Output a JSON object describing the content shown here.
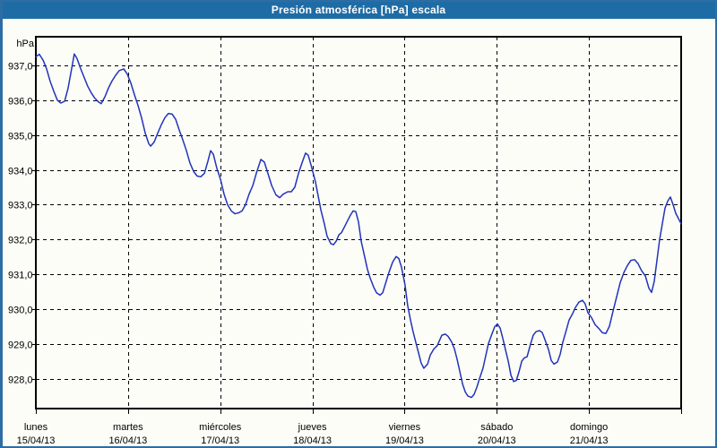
{
  "window": {
    "title": "Presión atmosférica [hPa] escala"
  },
  "colors": {
    "titlebar_bg": "#1e6ca5",
    "titlebar_text": "#ffffff",
    "window_border": "#2e6da4",
    "background": "#fcfdf7",
    "grid": "#000000",
    "axis_box": "#000000",
    "line": "#2233bb",
    "label_text": "#000000"
  },
  "chart_data": {
    "type": "line",
    "title": "Presión atmosférica [hPa] escala",
    "y_unit": "hPa",
    "ylabel": "hPa",
    "xlabel": "",
    "grid": true,
    "legend": "none",
    "ylim": [
      927.1,
      937.8
    ],
    "x_hours_range": [
      0,
      168
    ],
    "y_ticks": [
      {
        "value": 937.0,
        "label": "937,0"
      },
      {
        "value": 936.0,
        "label": "936,0"
      },
      {
        "value": 935.0,
        "label": "935,0"
      },
      {
        "value": 934.0,
        "label": "934,0"
      },
      {
        "value": 933.0,
        "label": "933,0"
      },
      {
        "value": 932.0,
        "label": "932,0"
      },
      {
        "value": 931.0,
        "label": "931,0"
      },
      {
        "value": 930.0,
        "label": "930,0"
      },
      {
        "value": 929.0,
        "label": "929,0"
      },
      {
        "value": 928.0,
        "label": "928,0"
      }
    ],
    "x_days": [
      {
        "name": "lunes",
        "date": "15/04/13"
      },
      {
        "name": "martes",
        "date": "16/04/13"
      },
      {
        "name": "miércoles",
        "date": "17/04/13"
      },
      {
        "name": "jueves",
        "date": "18/04/13"
      },
      {
        "name": "viernes",
        "date": "19/04/13"
      },
      {
        "name": "sábado",
        "date": "20/04/13"
      },
      {
        "name": "domingo",
        "date": "21/04/13"
      }
    ],
    "series": [
      {
        "name": "Presión atmosférica",
        "points": [
          [
            0,
            937.25
          ],
          [
            0.9,
            937.32
          ],
          [
            1.9,
            937.15
          ],
          [
            2.8,
            936.9
          ],
          [
            3.7,
            936.55
          ],
          [
            4.7,
            936.25
          ],
          [
            5.6,
            936.0
          ],
          [
            6.5,
            935.92
          ],
          [
            7.5,
            935.97
          ],
          [
            8.4,
            936.35
          ],
          [
            9.3,
            936.9
          ],
          [
            10.0,
            937.33
          ],
          [
            10.7,
            937.2
          ],
          [
            11.7,
            936.9
          ],
          [
            12.6,
            936.65
          ],
          [
            13.5,
            936.4
          ],
          [
            14.5,
            936.2
          ],
          [
            15.4,
            936.05
          ],
          [
            16.3,
            935.95
          ],
          [
            17.0,
            935.9
          ],
          [
            18.0,
            936.1
          ],
          [
            18.9,
            936.35
          ],
          [
            19.8,
            936.55
          ],
          [
            20.8,
            936.72
          ],
          [
            21.7,
            936.85
          ],
          [
            22.9,
            936.9
          ],
          [
            23.8,
            936.75
          ],
          [
            24.7,
            936.5
          ],
          [
            25.7,
            936.15
          ],
          [
            26.6,
            935.85
          ],
          [
            27.5,
            935.5
          ],
          [
            28.5,
            935.05
          ],
          [
            29.4,
            934.75
          ],
          [
            29.9,
            934.68
          ],
          [
            30.8,
            934.8
          ],
          [
            31.7,
            935.05
          ],
          [
            32.7,
            935.3
          ],
          [
            33.6,
            935.5
          ],
          [
            34.5,
            935.62
          ],
          [
            35.5,
            935.6
          ],
          [
            36.4,
            935.45
          ],
          [
            37.3,
            935.15
          ],
          [
            38.3,
            934.85
          ],
          [
            39.2,
            934.55
          ],
          [
            40.1,
            934.2
          ],
          [
            41.1,
            933.95
          ],
          [
            42.0,
            933.82
          ],
          [
            42.9,
            933.8
          ],
          [
            43.9,
            933.9
          ],
          [
            44.8,
            934.25
          ],
          [
            45.5,
            934.55
          ],
          [
            46.2,
            934.45
          ],
          [
            47.1,
            934.05
          ],
          [
            48.1,
            933.72
          ],
          [
            49.0,
            933.3
          ],
          [
            49.9,
            933.0
          ],
          [
            50.9,
            932.82
          ],
          [
            51.8,
            932.74
          ],
          [
            52.7,
            932.76
          ],
          [
            53.7,
            932.82
          ],
          [
            54.6,
            933.0
          ],
          [
            55.5,
            933.3
          ],
          [
            56.5,
            933.55
          ],
          [
            57.4,
            933.9
          ],
          [
            58.6,
            934.3
          ],
          [
            59.5,
            934.22
          ],
          [
            60.4,
            933.9
          ],
          [
            61.4,
            933.55
          ],
          [
            62.5,
            933.28
          ],
          [
            63.5,
            933.2
          ],
          [
            64.4,
            933.3
          ],
          [
            65.6,
            933.37
          ],
          [
            66.5,
            933.37
          ],
          [
            67.4,
            933.5
          ],
          [
            68.4,
            933.9
          ],
          [
            69.3,
            934.2
          ],
          [
            70.2,
            934.48
          ],
          [
            70.9,
            934.42
          ],
          [
            71.6,
            934.15
          ],
          [
            72.8,
            933.65
          ],
          [
            73.5,
            933.25
          ],
          [
            74.2,
            932.85
          ],
          [
            75.1,
            932.45
          ],
          [
            75.8,
            932.1
          ],
          [
            76.8,
            931.88
          ],
          [
            77.5,
            931.85
          ],
          [
            78.2,
            931.95
          ],
          [
            78.9,
            932.13
          ],
          [
            79.6,
            932.2
          ],
          [
            80.3,
            932.35
          ],
          [
            81.2,
            932.55
          ],
          [
            81.9,
            932.7
          ],
          [
            82.6,
            932.82
          ],
          [
            83.3,
            932.8
          ],
          [
            84.0,
            932.5
          ],
          [
            84.7,
            931.95
          ],
          [
            85.6,
            931.5
          ],
          [
            86.3,
            931.15
          ],
          [
            87.0,
            930.9
          ],
          [
            88.0,
            930.62
          ],
          [
            88.7,
            930.47
          ],
          [
            89.6,
            930.4
          ],
          [
            90.3,
            930.47
          ],
          [
            91.0,
            930.72
          ],
          [
            91.9,
            931.05
          ],
          [
            92.9,
            931.35
          ],
          [
            93.8,
            931.51
          ],
          [
            94.5,
            931.45
          ],
          [
            95.2,
            931.2
          ],
          [
            96.1,
            930.7
          ],
          [
            96.8,
            930.1
          ],
          [
            97.5,
            929.7
          ],
          [
            98.2,
            929.35
          ],
          [
            98.9,
            929.05
          ],
          [
            99.6,
            928.75
          ],
          [
            100.3,
            928.45
          ],
          [
            101.0,
            928.3
          ],
          [
            102.0,
            928.42
          ],
          [
            102.7,
            928.68
          ],
          [
            103.6,
            928.85
          ],
          [
            104.5,
            928.95
          ],
          [
            105.7,
            929.25
          ],
          [
            106.6,
            929.28
          ],
          [
            107.3,
            929.22
          ],
          [
            108.3,
            929.05
          ],
          [
            109.0,
            928.85
          ],
          [
            109.7,
            928.55
          ],
          [
            110.4,
            928.2
          ],
          [
            111.1,
            927.85
          ],
          [
            111.8,
            927.62
          ],
          [
            112.5,
            927.5
          ],
          [
            113.4,
            927.46
          ],
          [
            114.1,
            927.55
          ],
          [
            114.8,
            927.75
          ],
          [
            115.5,
            928.0
          ],
          [
            116.4,
            928.3
          ],
          [
            117.1,
            928.65
          ],
          [
            117.8,
            929.0
          ],
          [
            118.8,
            929.3
          ],
          [
            119.5,
            929.5
          ],
          [
            120.2,
            929.57
          ],
          [
            120.9,
            929.45
          ],
          [
            121.6,
            929.15
          ],
          [
            122.3,
            928.82
          ],
          [
            123.0,
            928.5
          ],
          [
            123.7,
            928.1
          ],
          [
            124.4,
            927.92
          ],
          [
            125.1,
            927.95
          ],
          [
            125.8,
            928.2
          ],
          [
            126.5,
            928.5
          ],
          [
            127.2,
            928.6
          ],
          [
            127.9,
            928.63
          ],
          [
            128.8,
            929.0
          ],
          [
            129.5,
            929.25
          ],
          [
            130.2,
            929.35
          ],
          [
            131.1,
            929.38
          ],
          [
            131.8,
            929.33
          ],
          [
            132.5,
            929.13
          ],
          [
            133.5,
            928.83
          ],
          [
            134.2,
            928.52
          ],
          [
            134.9,
            928.42
          ],
          [
            135.8,
            928.48
          ],
          [
            136.5,
            928.7
          ],
          [
            137.2,
            929.05
          ],
          [
            138.1,
            929.4
          ],
          [
            138.8,
            929.68
          ],
          [
            139.8,
            929.88
          ],
          [
            140.5,
            930.05
          ],
          [
            141.4,
            930.2
          ],
          [
            142.3,
            930.25
          ],
          [
            143.0,
            930.15
          ],
          [
            143.7,
            929.9
          ],
          [
            144.7,
            929.75
          ],
          [
            145.6,
            929.55
          ],
          [
            146.5,
            929.45
          ],
          [
            147.5,
            929.32
          ],
          [
            148.4,
            929.3
          ],
          [
            149.3,
            929.5
          ],
          [
            150.3,
            929.95
          ],
          [
            151.2,
            930.35
          ],
          [
            152.1,
            930.75
          ],
          [
            153.1,
            931.05
          ],
          [
            154.0,
            931.25
          ],
          [
            154.9,
            931.4
          ],
          [
            155.9,
            931.42
          ],
          [
            156.8,
            931.3
          ],
          [
            157.7,
            931.1
          ],
          [
            158.7,
            930.95
          ],
          [
            159.6,
            930.6
          ],
          [
            160.3,
            930.48
          ],
          [
            161.0,
            930.8
          ],
          [
            161.7,
            931.4
          ],
          [
            162.4,
            932.0
          ],
          [
            163.1,
            932.45
          ],
          [
            163.8,
            932.9
          ],
          [
            164.5,
            933.1
          ],
          [
            165.2,
            933.22
          ],
          [
            165.9,
            933.0
          ],
          [
            166.6,
            932.75
          ],
          [
            167.3,
            932.6
          ],
          [
            168.0,
            932.45
          ]
        ]
      }
    ]
  }
}
